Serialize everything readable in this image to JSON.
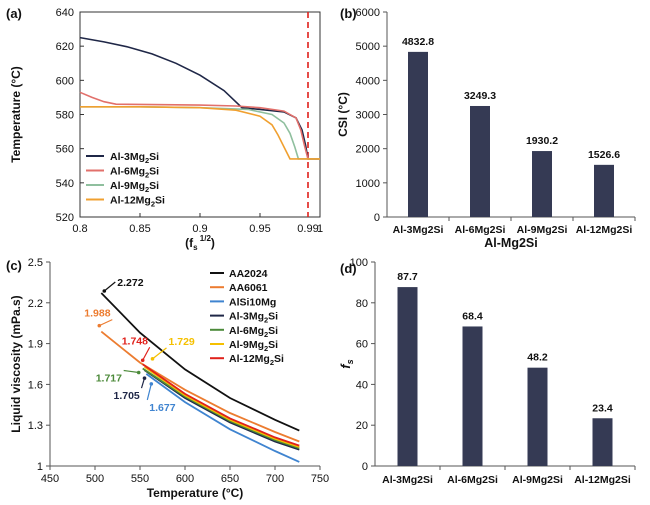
{
  "chart_data": [
    {
      "panel": "(a)",
      "type": "line",
      "xlabel": "(f_s^(1/2))",
      "xlabel_parts": {
        "base": "(f",
        "sub": "s",
        "sup": "1/2",
        "close": ")"
      },
      "ylabel": "Temperature (°C)",
      "xlim": [
        0.8,
        1.0
      ],
      "ylim": [
        520,
        640
      ],
      "xticks": [
        {
          "value": 0.8,
          "label": "0.8"
        },
        {
          "value": 0.85,
          "label": "0.85"
        },
        {
          "value": 0.9,
          "label": "0.9"
        },
        {
          "value": 0.95,
          "label": "0.95"
        },
        {
          "value": 0.99,
          "label": "0.99"
        },
        {
          "value": 1.0,
          "label": "1"
        }
      ],
      "yticks": [
        520,
        540,
        560,
        580,
        600,
        620,
        640
      ],
      "vline": {
        "x": 0.99,
        "color": "#e0211b"
      },
      "legend_position": "bottom-left",
      "series": [
        {
          "name": "Al-3Mg2Si",
          "label_base": "Al-3Mg",
          "label_sub": "2",
          "label_tail": "Si",
          "color": "#1f2747",
          "x": [
            0.8,
            0.82,
            0.84,
            0.86,
            0.88,
            0.9,
            0.92,
            0.935,
            0.95,
            0.97,
            0.98,
            0.985,
            0.988,
            0.99,
            1.0
          ],
          "y": [
            625,
            622.5,
            619.5,
            615.5,
            610,
            603,
            594,
            584,
            583,
            581.5,
            578,
            571,
            562,
            554,
            554
          ]
        },
        {
          "name": "Al-6Mg2Si",
          "label_base": "Al-6Mg",
          "label_sub": "2",
          "label_tail": "Si",
          "color": "#e2706b",
          "x": [
            0.8,
            0.81,
            0.82,
            0.83,
            0.86,
            0.9,
            0.93,
            0.95,
            0.97,
            0.98,
            0.984,
            0.987,
            0.99,
            1.0
          ],
          "y": [
            593,
            590,
            587.5,
            586,
            585.8,
            585.5,
            585,
            584,
            582,
            578,
            571,
            562,
            554,
            554
          ]
        },
        {
          "name": "Al-9Mg2Si",
          "label_base": "Al-9Mg",
          "label_sub": "2",
          "label_tail": "Si",
          "color": "#8fbf9e",
          "x": [
            0.8,
            0.85,
            0.9,
            0.94,
            0.96,
            0.97,
            0.975,
            0.979,
            0.982,
            1.0
          ],
          "y": [
            584.5,
            584.5,
            584,
            583,
            580,
            575,
            569,
            561,
            554,
            554
          ]
        },
        {
          "name": "Al-12Mg2Si",
          "label_base": "Al-12Mg",
          "label_sub": "2",
          "label_tail": "Si",
          "color": "#f0a030",
          "x": [
            0.8,
            0.85,
            0.9,
            0.93,
            0.95,
            0.96,
            0.965,
            0.97,
            0.975,
            1.0
          ],
          "y": [
            584.5,
            584.5,
            584,
            582.5,
            579,
            574,
            568,
            561,
            554,
            554
          ]
        }
      ]
    },
    {
      "panel": "(b)",
      "type": "bar",
      "xlabel": "Al-Mg2Si",
      "ylabel": "CSI  (°C)",
      "ylim": [
        0,
        6000
      ],
      "yticks": [
        0,
        1000,
        2000,
        3000,
        4000,
        5000,
        6000
      ],
      "bar_color": "#353a54",
      "categories": [
        "Al-3Mg2Si",
        "Al-6Mg2Si",
        "Al-9Mg2Si",
        "Al-12Mg2Si"
      ],
      "values": [
        4832.8,
        3249.3,
        1930.2,
        1526.6
      ],
      "value_labels": [
        "4832.8",
        "3249.3",
        "1930.2",
        "1526.6"
      ]
    },
    {
      "panel": "(c)",
      "type": "line",
      "xlabel": "Temperature (°C)",
      "ylabel": "Liquid viscosity (mPa.s)",
      "xlim": [
        450,
        750
      ],
      "ylim": [
        1,
        2.5
      ],
      "xticks": [
        450,
        500,
        550,
        600,
        650,
        700,
        750
      ],
      "yticks": [
        {
          "value": 1,
          "label": "1"
        },
        {
          "value": 1.3,
          "label": "1.3"
        },
        {
          "value": 1.6,
          "label": "1.6"
        },
        {
          "value": 1.9,
          "label": "1.9"
        },
        {
          "value": 2.2,
          "label": "2.2"
        },
        {
          "value": 2.5,
          "label": "2.5"
        }
      ],
      "legend_position": "top-right",
      "series": [
        {
          "name": "AA2024",
          "label_base": "AA2024",
          "label_sub": "",
          "label_tail": "",
          "color": "#111111",
          "x": [
            507,
            550,
            600,
            650,
            700,
            727
          ],
          "y": [
            2.272,
            1.98,
            1.71,
            1.5,
            1.34,
            1.26
          ]
        },
        {
          "name": "AA6061",
          "label_base": "AA6061",
          "label_sub": "",
          "label_tail": "",
          "color": "#ec7c30",
          "x": [
            507,
            550,
            600,
            650,
            700,
            727
          ],
          "y": [
            1.988,
            1.76,
            1.56,
            1.39,
            1.25,
            1.18
          ]
        },
        {
          "name": "AlSi10Mg",
          "label_base": "AlSi10Mg",
          "label_sub": "",
          "label_tail": "",
          "color": "#3f84d0",
          "x": [
            557,
            600,
            650,
            700,
            727
          ],
          "y": [
            1.677,
            1.47,
            1.27,
            1.11,
            1.03
          ]
        },
        {
          "name": "Al-3Mg2Si",
          "label_base": "Al-3Mg",
          "label_sub": "2",
          "label_tail": "Si",
          "color": "#1f2747",
          "x": [
            555,
            600,
            650,
            700,
            727
          ],
          "y": [
            1.705,
            1.5,
            1.32,
            1.18,
            1.12
          ]
        },
        {
          "name": "Al-6Mg2Si",
          "label_base": "Al-6Mg",
          "label_sub": "2",
          "label_tail": "Si",
          "color": "#4c8a3a",
          "x": [
            553,
            600,
            650,
            700,
            727
          ],
          "y": [
            1.717,
            1.51,
            1.33,
            1.19,
            1.13
          ]
        },
        {
          "name": "Al-9Mg2Si",
          "label_base": "Al-9Mg",
          "label_sub": "2",
          "label_tail": "Si",
          "color": "#f5c000",
          "x": [
            555,
            600,
            650,
            700,
            727
          ],
          "y": [
            1.729,
            1.52,
            1.34,
            1.2,
            1.14
          ]
        },
        {
          "name": "Al-12Mg2Si",
          "label_base": "Al-12Mg",
          "label_sub": "2",
          "label_tail": "Si",
          "color": "#e0211b",
          "x": [
            553,
            600,
            650,
            700,
            727
          ],
          "y": [
            1.748,
            1.53,
            1.35,
            1.21,
            1.15
          ]
        }
      ],
      "annotations": [
        {
          "text": "2.272",
          "color": "#111111",
          "point": [
            507,
            2.272
          ]
        },
        {
          "text": "1.988",
          "color": "#ec7c30",
          "point": [
            507,
            1.988
          ]
        },
        {
          "text": "1.748",
          "color": "#e0211b",
          "point": [
            553,
            1.748
          ]
        },
        {
          "text": "1.729",
          "color": "#f5c000",
          "point": [
            555,
            1.729
          ]
        },
        {
          "text": "1.717",
          "color": "#4c8a3a",
          "point": [
            553,
            1.717
          ]
        },
        {
          "text": "1.705",
          "color": "#1f2747",
          "point": [
            555,
            1.705
          ]
        },
        {
          "text": "1.677",
          "color": "#3f84d0",
          "point": [
            557,
            1.677
          ]
        }
      ]
    },
    {
      "panel": "(d)",
      "type": "bar",
      "xlabel": "",
      "ylabel": "f_s",
      "ylabel_parts": {
        "base": "f",
        "sub": "s"
      },
      "ylim": [
        0,
        100
      ],
      "yticks": [
        0,
        20,
        40,
        60,
        80,
        100
      ],
      "bar_color": "#353a54",
      "categories": [
        "Al-3Mg2Si",
        "Al-6Mg2Si",
        "Al-9Mg2Si",
        "Al-12Mg2Si"
      ],
      "values": [
        87.7,
        68.4,
        48.2,
        23.4
      ],
      "value_labels": [
        "87.7",
        "68.4",
        "48.2",
        "23.4"
      ]
    }
  ]
}
